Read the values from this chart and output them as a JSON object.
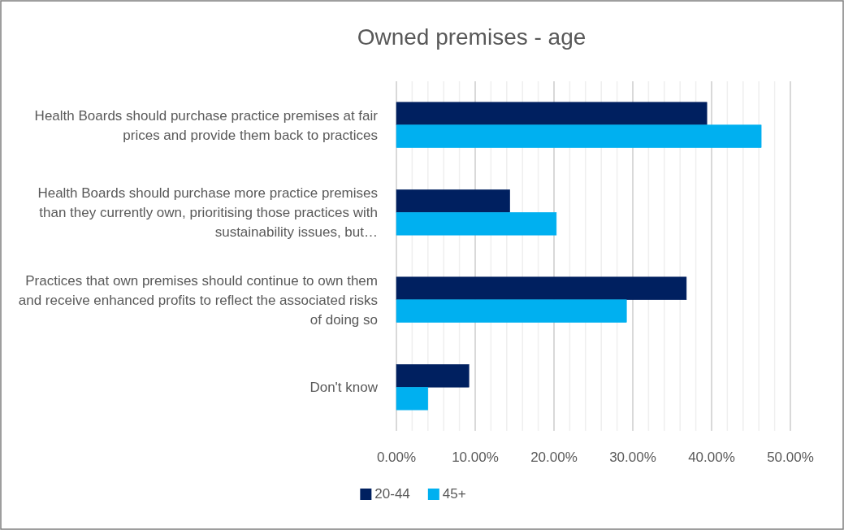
{
  "chart_data": {
    "type": "bar",
    "orientation": "horizontal",
    "title": "Owned premises - age",
    "categories": [
      "Health Boards should purchase practice premises at fair prices and provide them back to practices",
      "Health Boards should purchase more practice premises than they currently own, prioritising those practices with sustainability issues, but…",
      "Practices that own premises should continue to own them and receive enhanced profits to reflect the associated risks of doing so",
      "Don't know"
    ],
    "series": [
      {
        "name": "20-44",
        "color": "#002060",
        "values": [
          39.4,
          14.4,
          36.8,
          9.2
        ]
      },
      {
        "name": "45+",
        "color": "#00b0f0",
        "values": [
          46.3,
          20.3,
          29.2,
          4.0
        ]
      }
    ],
    "xlim": [
      0,
      50
    ],
    "xticks": [
      {
        "value": 0,
        "label": "0.00%"
      },
      {
        "value": 2,
        "label": null
      },
      {
        "value": 4,
        "label": null
      },
      {
        "value": 6,
        "label": null
      },
      {
        "value": 8,
        "label": null
      },
      {
        "value": 10,
        "label": "10.00%"
      },
      {
        "value": 12,
        "label": null
      },
      {
        "value": 14,
        "label": null
      },
      {
        "value": 16,
        "label": null
      },
      {
        "value": 18,
        "label": null
      },
      {
        "value": 20,
        "label": "20.00%"
      },
      {
        "value": 22,
        "label": null
      },
      {
        "value": 24,
        "label": null
      },
      {
        "value": 26,
        "label": null
      },
      {
        "value": 28,
        "label": null
      },
      {
        "value": 30,
        "label": "30.00%"
      },
      {
        "value": 32,
        "label": null
      },
      {
        "value": 34,
        "label": null
      },
      {
        "value": 36,
        "label": null
      },
      {
        "value": 38,
        "label": null
      },
      {
        "value": 40,
        "label": "40.00%"
      },
      {
        "value": 42,
        "label": null
      },
      {
        "value": 44,
        "label": null
      },
      {
        "value": 46,
        "label": null
      },
      {
        "value": 48,
        "label": null
      },
      {
        "value": 50,
        "label": "50.00%"
      }
    ],
    "grid": true,
    "legend": "bottom"
  }
}
